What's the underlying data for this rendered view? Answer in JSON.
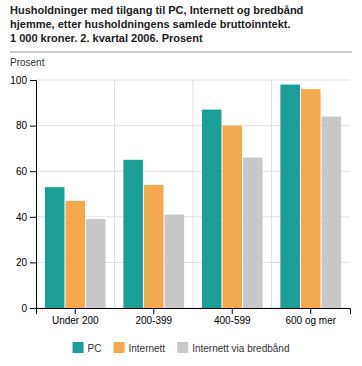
{
  "chart_data": {
    "type": "bar",
    "title": "Husholdninger med tilgang til PC, Internett og bredbånd\nhjemme, etter husholdningens samlede bruttoinntekt.\n1 000 kroner. 2. kvartal 2006. Prosent",
    "y_label": "Prosent",
    "categories": [
      "Under 200",
      "200-399",
      "400-599",
      "600 og mer"
    ],
    "series": [
      {
        "name": "PC",
        "color": "#1a9e96",
        "values": [
          53,
          65,
          87,
          98
        ]
      },
      {
        "name": "Internett",
        "color": "#f5a94e",
        "values": [
          47,
          54,
          80,
          96
        ]
      },
      {
        "name": "Internett via bredbånd",
        "color": "#c8c8c8",
        "values": [
          39,
          41,
          66,
          84
        ]
      }
    ],
    "ylim": [
      0,
      100
    ],
    "yticks": [
      0,
      20,
      40,
      60,
      80,
      100
    ],
    "grid": true,
    "legend": "bottom"
  }
}
